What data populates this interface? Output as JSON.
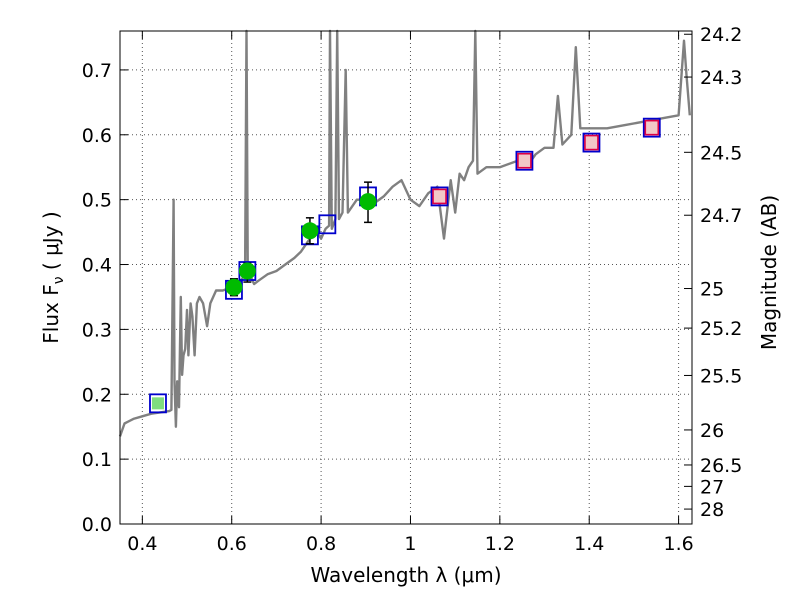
{
  "chart_data": {
    "type": "scatter",
    "xlabel": "Wavelength  λ (μm)",
    "ylabel": "Flux  F",
    "ylabel_sub": "ν",
    "ylabel_unit": "  ( μJy )",
    "y2label": "Magnitude (AB)",
    "xlim": [
      0.35,
      1.63
    ],
    "ylim": [
      0.0,
      0.76
    ],
    "grid": true,
    "x_ticks": [
      0.4,
      0.6,
      0.8,
      1.0,
      1.2,
      1.4,
      1.6
    ],
    "x_tick_labels": [
      "0.4",
      "0.6",
      "0.8",
      "1",
      "1.2",
      "1.4",
      "1.6"
    ],
    "y_ticks": [
      0.0,
      0.1,
      0.2,
      0.3,
      0.4,
      0.5,
      0.6,
      0.7
    ],
    "y_tick_labels": [
      "0.0",
      "0.1",
      "0.2",
      "0.3",
      "0.4",
      "0.5",
      "0.6",
      "0.7"
    ],
    "y2_ticks": [
      {
        "label": "24.2",
        "flux": 0.755
      },
      {
        "label": "24.3",
        "flux": 0.689
      },
      {
        "label": "24.5",
        "flux": 0.573
      },
      {
        "label": "24.7",
        "flux": 0.476
      },
      {
        "label": "25",
        "flux": 0.363
      },
      {
        "label": "25.2",
        "flux": 0.302
      },
      {
        "label": "25.5",
        "flux": 0.229
      },
      {
        "label": "26",
        "flux": 0.145
      },
      {
        "label": "26.5",
        "flux": 0.091
      },
      {
        "label": "27",
        "flux": 0.058
      },
      {
        "label": "28",
        "flux": 0.023
      }
    ],
    "colors": {
      "spectrum": "#808080",
      "observed": "#00bb00",
      "model_box": "#0000cc",
      "ir_box": "#dd0044",
      "ir_fill": "#f2c7c7",
      "errorbar": "#000000",
      "grid": "#555555"
    },
    "series": [
      {
        "type": "line",
        "points": [
          [
            0.35,
            0.135
          ],
          [
            0.36,
            0.155
          ],
          [
            0.38,
            0.162
          ],
          [
            0.4,
            0.166
          ],
          [
            0.42,
            0.17
          ],
          [
            0.44,
            0.172
          ],
          [
            0.46,
            0.174
          ],
          [
            0.465,
            0.176
          ],
          [
            0.47,
            0.5
          ],
          [
            0.472,
            0.22
          ],
          [
            0.475,
            0.15
          ],
          [
            0.478,
            0.22
          ],
          [
            0.482,
            0.18
          ],
          [
            0.486,
            0.35
          ],
          [
            0.489,
            0.23
          ],
          [
            0.492,
            0.26
          ],
          [
            0.496,
            0.27
          ],
          [
            0.5,
            0.33
          ],
          [
            0.503,
            0.26
          ],
          [
            0.508,
            0.34
          ],
          [
            0.512,
            0.32
          ],
          [
            0.517,
            0.26
          ],
          [
            0.522,
            0.34
          ],
          [
            0.528,
            0.35
          ],
          [
            0.536,
            0.34
          ],
          [
            0.545,
            0.305
          ],
          [
            0.552,
            0.34
          ],
          [
            0.565,
            0.36
          ],
          [
            0.58,
            0.36
          ],
          [
            0.6,
            0.365
          ],
          [
            0.615,
            0.37
          ],
          [
            0.625,
            0.38
          ],
          [
            0.63,
            0.39
          ],
          [
            0.633,
            0.76
          ],
          [
            0.636,
            0.38
          ],
          [
            0.64,
            0.385
          ],
          [
            0.65,
            0.37
          ],
          [
            0.66,
            0.375
          ],
          [
            0.68,
            0.385
          ],
          [
            0.7,
            0.39
          ],
          [
            0.72,
            0.4
          ],
          [
            0.74,
            0.41
          ],
          [
            0.755,
            0.42
          ],
          [
            0.77,
            0.435
          ],
          [
            0.78,
            0.445
          ],
          [
            0.79,
            0.45
          ],
          [
            0.8,
            0.44
          ],
          [
            0.81,
            0.455
          ],
          [
            0.818,
            0.46
          ],
          [
            0.82,
            0.76
          ],
          [
            0.824,
            0.455
          ],
          [
            0.832,
            0.47
          ],
          [
            0.836,
            0.76
          ],
          [
            0.84,
            0.47
          ],
          [
            0.848,
            0.48
          ],
          [
            0.855,
            0.7
          ],
          [
            0.86,
            0.48
          ],
          [
            0.87,
            0.49
          ],
          [
            0.88,
            0.5
          ],
          [
            0.9,
            0.5
          ],
          [
            0.92,
            0.495
          ],
          [
            0.94,
            0.505
          ],
          [
            0.96,
            0.52
          ],
          [
            0.98,
            0.53
          ],
          [
            1.0,
            0.5
          ],
          [
            1.02,
            0.49
          ],
          [
            1.04,
            0.51
          ],
          [
            1.06,
            0.52
          ],
          [
            1.075,
            0.44
          ],
          [
            1.09,
            0.53
          ],
          [
            1.1,
            0.48
          ],
          [
            1.11,
            0.54
          ],
          [
            1.12,
            0.53
          ],
          [
            1.13,
            0.55
          ],
          [
            1.14,
            0.56
          ],
          [
            1.145,
            0.76
          ],
          [
            1.15,
            0.54
          ],
          [
            1.17,
            0.55
          ],
          [
            1.2,
            0.55
          ],
          [
            1.24,
            0.56
          ],
          [
            1.27,
            0.56
          ],
          [
            1.28,
            0.57
          ],
          [
            1.3,
            0.58
          ],
          [
            1.32,
            0.58
          ],
          [
            1.33,
            0.66
          ],
          [
            1.34,
            0.585
          ],
          [
            1.36,
            0.6
          ],
          [
            1.37,
            0.735
          ],
          [
            1.38,
            0.61
          ],
          [
            1.4,
            0.61
          ],
          [
            1.44,
            0.61
          ],
          [
            1.48,
            0.615
          ],
          [
            1.52,
            0.62
          ],
          [
            1.56,
            0.625
          ],
          [
            1.6,
            0.63
          ],
          [
            1.612,
            0.745
          ],
          [
            1.618,
            0.69
          ],
          [
            1.625,
            0.63
          ]
        ]
      },
      {
        "type": "squares-blue",
        "points": [
          [
            0.435,
            0.186
          ],
          [
            0.605,
            0.361
          ],
          [
            0.635,
            0.39
          ],
          [
            0.775,
            0.445
          ],
          [
            0.814,
            0.462
          ],
          [
            0.905,
            0.505
          ],
          [
            1.065,
            0.505
          ],
          [
            1.255,
            0.56
          ],
          [
            1.405,
            0.588
          ],
          [
            1.54,
            0.611
          ]
        ]
      },
      {
        "type": "squares-red",
        "points": [
          [
            1.065,
            0.505
          ],
          [
            1.255,
            0.56
          ],
          [
            1.405,
            0.588
          ],
          [
            1.54,
            0.611
          ]
        ]
      },
      {
        "type": "circles-green",
        "points": [
          [
            0.605,
            0.365
          ],
          [
            0.635,
            0.39
          ],
          [
            0.775,
            0.452
          ],
          [
            0.905,
            0.497
          ]
        ]
      },
      {
        "type": "errorbars",
        "points": [
          [
            0.605,
            0.352,
            0.378
          ],
          [
            0.635,
            0.373,
            0.402
          ],
          [
            0.775,
            0.432,
            0.472
          ],
          [
            0.905,
            0.465,
            0.527
          ]
        ]
      }
    ]
  }
}
